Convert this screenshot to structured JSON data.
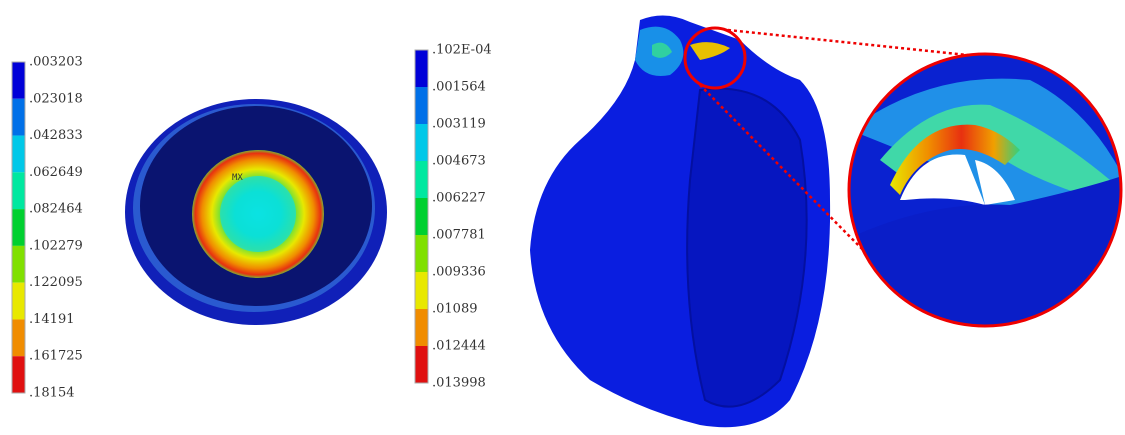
{
  "legends": [
    {
      "labels": [
        ".003203",
        ".023018",
        ".042833",
        ".062649",
        ".082464",
        ".102279",
        ".122095",
        ".14191",
        ".161725",
        ".18154"
      ]
    },
    {
      "labels": [
        ".102E-04",
        ".001564",
        ".003119",
        ".004673",
        ".006227",
        ".007781",
        ".009336",
        ".01089",
        ".012444",
        ".013998"
      ]
    }
  ],
  "colors": [
    "#0000d8",
    "#0070e8",
    "#00c8e8",
    "#00e8a0",
    "#00d030",
    "#80e000",
    "#e8e800",
    "#f08c00",
    "#e01010"
  ],
  "max_marker": "MX"
}
